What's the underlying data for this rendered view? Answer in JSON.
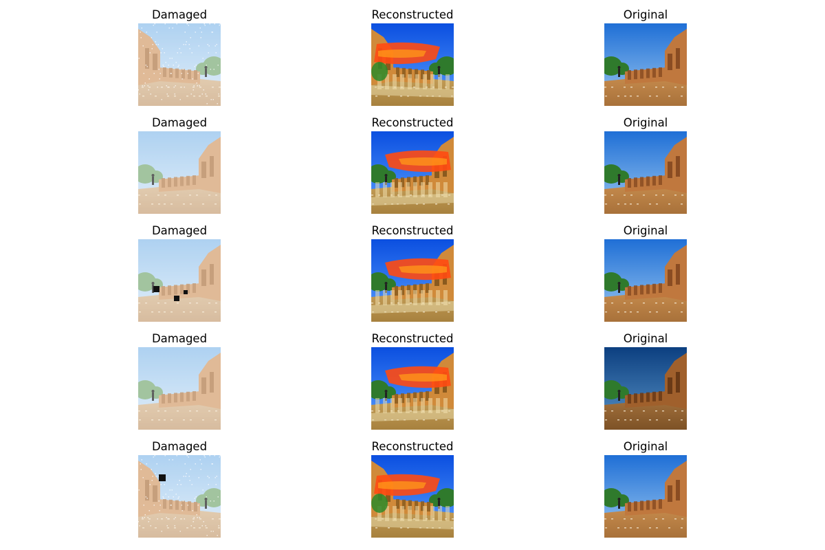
{
  "figure": {
    "rows": [
      {
        "cells": [
          {
            "title": "Damaged",
            "kind": "damaged",
            "mirror": true,
            "variant": "noise"
          },
          {
            "title": "Reconstructed",
            "kind": "reconstructed",
            "mirror": true,
            "variant": "a"
          },
          {
            "title": "Original",
            "kind": "original",
            "mirror": false,
            "variant": "a"
          }
        ]
      },
      {
        "cells": [
          {
            "title": "Damaged",
            "kind": "damaged",
            "mirror": false,
            "variant": "haze"
          },
          {
            "title": "Reconstructed",
            "kind": "reconstructed",
            "mirror": false,
            "variant": "b"
          },
          {
            "title": "Original",
            "kind": "original",
            "mirror": false,
            "variant": "b"
          }
        ]
      },
      {
        "cells": [
          {
            "title": "Damaged",
            "kind": "damaged",
            "mirror": false,
            "variant": "holes"
          },
          {
            "title": "Reconstructed",
            "kind": "reconstructed",
            "mirror": false,
            "variant": "c"
          },
          {
            "title": "Original",
            "kind": "original",
            "mirror": false,
            "variant": "c"
          }
        ]
      },
      {
        "cells": [
          {
            "title": "Damaged",
            "kind": "damaged",
            "mirror": false,
            "variant": "haze"
          },
          {
            "title": "Reconstructed",
            "kind": "reconstructed",
            "mirror": false,
            "variant": "d"
          },
          {
            "title": "Original",
            "kind": "original",
            "mirror": false,
            "variant": "dark"
          }
        ]
      },
      {
        "cells": [
          {
            "title": "Damaged",
            "kind": "damaged",
            "mirror": true,
            "variant": "hole-noise"
          },
          {
            "title": "Reconstructed",
            "kind": "reconstructed",
            "mirror": true,
            "variant": "e"
          },
          {
            "title": "Original",
            "kind": "original",
            "mirror": false,
            "variant": "a"
          }
        ]
      }
    ]
  }
}
